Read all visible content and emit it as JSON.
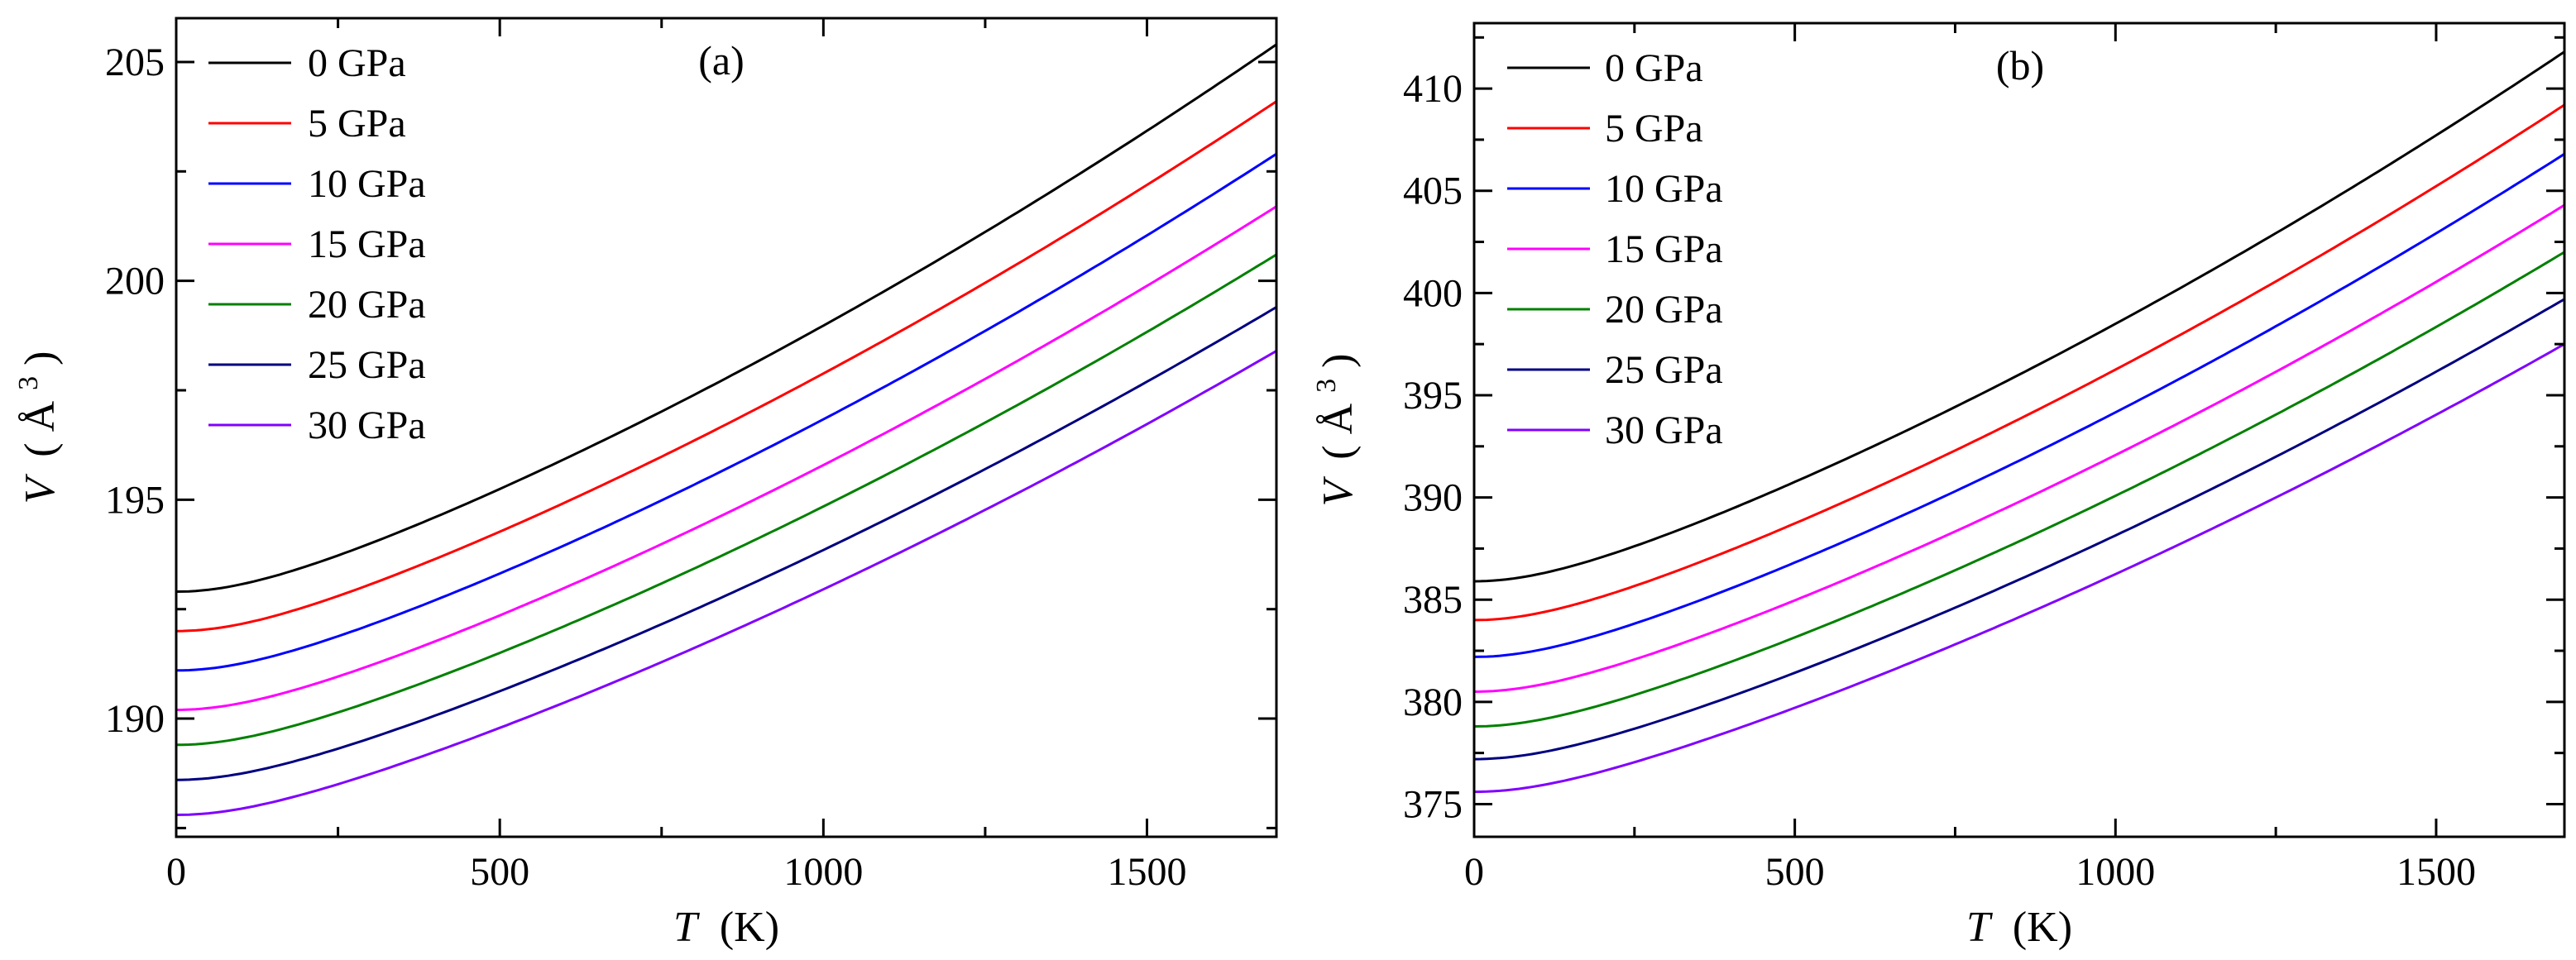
{
  "chart_data": [
    {
      "type": "line",
      "panel_label": "(a)",
      "xlabel_var": "T",
      "xlabel_unit": "(K)",
      "ylabel_var": "V",
      "ylabel_unit_open": "(",
      "ylabel_unit_base": "Å",
      "ylabel_unit_sup": "3",
      "ylabel_unit_close": ")",
      "xlim": [
        0,
        1700
      ],
      "ylim": [
        187.3,
        206
      ],
      "xticks": [
        0,
        500,
        1000,
        1500
      ],
      "xtick_labels": [
        "0",
        "500",
        "1000",
        "1500"
      ],
      "yticks": [
        190,
        195,
        200,
        205
      ],
      "ytick_labels": [
        "190",
        "195",
        "200",
        "205"
      ],
      "legend_position": "top-left",
      "series": [
        {
          "name": "0 GPa",
          "color": "#000000",
          "v0": 192.9,
          "vend": 205.4
        },
        {
          "name": "5 GPa",
          "color": "#ff0000",
          "v0": 192.0,
          "vend": 204.1
        },
        {
          "name": "10 GPa",
          "color": "#0000ff",
          "v0": 191.1,
          "vend": 202.9
        },
        {
          "name": "15 GPa",
          "color": "#ff00ff",
          "v0": 190.2,
          "vend": 201.7
        },
        {
          "name": "20 GPa",
          "color": "#008000",
          "v0": 189.4,
          "vend": 200.6
        },
        {
          "name": "25 GPa",
          "color": "#000080",
          "v0": 188.6,
          "vend": 199.4
        },
        {
          "name": "30 GPa",
          "color": "#8000ff",
          "v0": 187.8,
          "vend": 198.4
        }
      ]
    },
    {
      "type": "line",
      "panel_label": "(b)",
      "xlabel_var": "T",
      "xlabel_unit": "(K)",
      "ylabel_var": "V",
      "ylabel_unit_open": "(",
      "ylabel_unit_base": "Å",
      "ylabel_unit_sup": "3",
      "ylabel_unit_close": ")",
      "xlim": [
        0,
        1700
      ],
      "ylim": [
        373.4,
        413.2
      ],
      "xticks": [
        0,
        500,
        1000,
        1500
      ],
      "xtick_labels": [
        "0",
        "500",
        "1000",
        "1500"
      ],
      "yticks": [
        375,
        380,
        385,
        390,
        395,
        400,
        405,
        410
      ],
      "ytick_labels": [
        "375",
        "380",
        "385",
        "390",
        "395",
        "400",
        "405",
        "410"
      ],
      "legend_position": "top-left",
      "series": [
        {
          "name": "0 GPa",
          "color": "#000000",
          "v0": 385.9,
          "vend": 411.8
        },
        {
          "name": "5 GPa",
          "color": "#ff0000",
          "v0": 384.0,
          "vend": 409.2
        },
        {
          "name": "10 GPa",
          "color": "#0000ff",
          "v0": 382.2,
          "vend": 406.8
        },
        {
          "name": "15 GPa",
          "color": "#ff00ff",
          "v0": 380.5,
          "vend": 404.3
        },
        {
          "name": "20 GPa",
          "color": "#008000",
          "v0": 378.8,
          "vend": 402.0
        },
        {
          "name": "25 GPa",
          "color": "#000080",
          "v0": 377.2,
          "vend": 399.7
        },
        {
          "name": "30 GPa",
          "color": "#8000ff",
          "v0": 375.6,
          "vend": 397.5
        }
      ]
    }
  ]
}
